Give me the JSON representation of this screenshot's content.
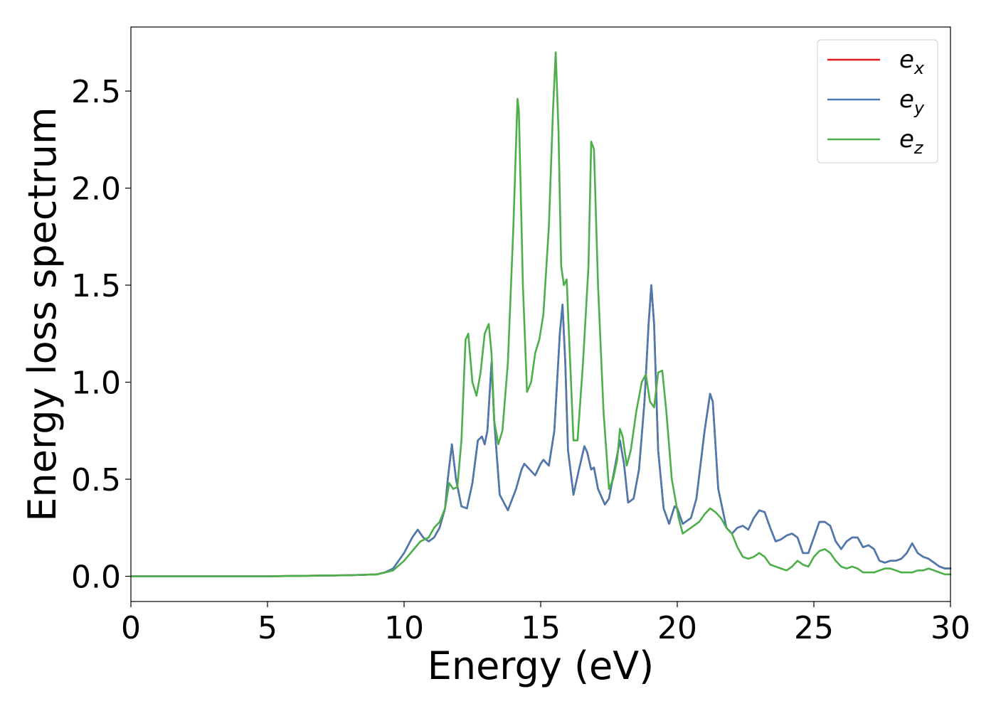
{
  "chart_data": {
    "type": "line",
    "xlabel": "Energy (eV)",
    "ylabel": "Energy loss spectrum",
    "xlim": [
      0,
      30
    ],
    "ylim": [
      -0.13,
      2.83
    ],
    "xticks": [
      "0",
      "5",
      "10",
      "15",
      "20",
      "25",
      "30"
    ],
    "yticks": [
      "0.0",
      "0.5",
      "1.0",
      "1.5",
      "2.0",
      "2.5"
    ],
    "grid": false,
    "legend_position": "top-right",
    "series": [
      {
        "name": "e_x",
        "label_main": "e",
        "label_sub": "x",
        "color": "#e41a1c",
        "x": [
          0,
          5,
          8,
          9,
          9.3,
          9.6,
          10.0,
          10.3,
          10.5,
          10.7,
          10.9,
          11.1,
          11.3,
          11.5,
          11.6,
          11.75,
          11.9,
          12.1,
          12.3,
          12.5,
          12.7,
          12.85,
          12.95,
          13.05,
          13.2,
          13.3,
          13.5,
          13.8,
          14.1,
          14.3,
          14.4,
          14.6,
          14.8,
          15.0,
          15.1,
          15.3,
          15.5,
          15.7,
          15.8,
          15.9,
          16.0,
          16.2,
          16.4,
          16.6,
          16.7,
          16.85,
          16.95,
          17.1,
          17.35,
          17.5,
          17.7,
          17.9,
          18.05,
          18.2,
          18.4,
          18.6,
          18.8,
          18.95,
          19.05,
          19.15,
          19.3,
          19.5,
          19.7,
          19.9,
          20.0,
          20.2,
          20.5,
          20.7,
          21.0,
          21.2,
          21.3,
          21.5,
          21.8,
          22.0,
          22.2,
          22.4,
          22.6,
          22.8,
          23.0,
          23.2,
          23.4,
          23.6,
          23.8,
          24.0,
          24.2,
          24.4,
          24.6,
          24.8,
          25.0,
          25.2,
          25.4,
          25.6,
          25.8,
          26.0,
          26.2,
          26.4,
          26.6,
          26.8,
          27.0,
          27.2,
          27.4,
          27.6,
          27.8,
          28.0,
          28.2,
          28.4,
          28.6,
          28.8,
          29.0,
          29.2,
          29.4,
          29.6,
          29.8,
          30.0
        ],
        "values": [
          0.0,
          0.0,
          0.005,
          0.01,
          0.02,
          0.04,
          0.12,
          0.2,
          0.24,
          0.2,
          0.18,
          0.2,
          0.25,
          0.35,
          0.5,
          0.68,
          0.5,
          0.36,
          0.35,
          0.48,
          0.7,
          0.72,
          0.68,
          0.75,
          1.1,
          0.8,
          0.42,
          0.34,
          0.45,
          0.55,
          0.58,
          0.55,
          0.52,
          0.58,
          0.6,
          0.57,
          0.75,
          1.25,
          1.4,
          1.1,
          0.65,
          0.42,
          0.55,
          0.67,
          0.64,
          0.55,
          0.56,
          0.45,
          0.37,
          0.4,
          0.55,
          0.7,
          0.58,
          0.38,
          0.4,
          0.55,
          0.9,
          1.3,
          1.5,
          1.3,
          0.65,
          0.35,
          0.27,
          0.36,
          0.35,
          0.27,
          0.3,
          0.4,
          0.75,
          0.94,
          0.9,
          0.45,
          0.25,
          0.22,
          0.25,
          0.26,
          0.24,
          0.3,
          0.34,
          0.33,
          0.25,
          0.18,
          0.19,
          0.21,
          0.22,
          0.2,
          0.12,
          0.12,
          0.2,
          0.28,
          0.28,
          0.26,
          0.18,
          0.14,
          0.18,
          0.2,
          0.2,
          0.15,
          0.16,
          0.14,
          0.08,
          0.07,
          0.08,
          0.08,
          0.09,
          0.12,
          0.17,
          0.12,
          0.1,
          0.09,
          0.07,
          0.05,
          0.04,
          0.04
        ]
      },
      {
        "name": "e_y",
        "label_main": "e",
        "label_sub": "y",
        "color": "#4a7bb0",
        "x": [
          0,
          5,
          8,
          9,
          9.3,
          9.6,
          10.0,
          10.3,
          10.5,
          10.7,
          10.9,
          11.1,
          11.3,
          11.5,
          11.6,
          11.75,
          11.9,
          12.1,
          12.3,
          12.5,
          12.7,
          12.85,
          12.95,
          13.05,
          13.2,
          13.3,
          13.5,
          13.8,
          14.1,
          14.3,
          14.4,
          14.6,
          14.8,
          15.0,
          15.1,
          15.3,
          15.5,
          15.7,
          15.8,
          15.9,
          16.0,
          16.2,
          16.4,
          16.6,
          16.7,
          16.85,
          16.95,
          17.1,
          17.35,
          17.5,
          17.7,
          17.9,
          18.05,
          18.2,
          18.4,
          18.6,
          18.8,
          18.95,
          19.05,
          19.15,
          19.3,
          19.5,
          19.7,
          19.9,
          20.0,
          20.2,
          20.5,
          20.7,
          21.0,
          21.2,
          21.3,
          21.5,
          21.8,
          22.0,
          22.2,
          22.4,
          22.6,
          22.8,
          23.0,
          23.2,
          23.4,
          23.6,
          23.8,
          24.0,
          24.2,
          24.4,
          24.6,
          24.8,
          25.0,
          25.2,
          25.4,
          25.6,
          25.8,
          26.0,
          26.2,
          26.4,
          26.6,
          26.8,
          27.0,
          27.2,
          27.4,
          27.6,
          27.8,
          28.0,
          28.2,
          28.4,
          28.6,
          28.8,
          29.0,
          29.2,
          29.4,
          29.6,
          29.8,
          30.0
        ],
        "values": [
          0.0,
          0.0,
          0.005,
          0.01,
          0.02,
          0.04,
          0.12,
          0.2,
          0.24,
          0.2,
          0.18,
          0.2,
          0.25,
          0.35,
          0.5,
          0.68,
          0.5,
          0.36,
          0.35,
          0.48,
          0.7,
          0.72,
          0.68,
          0.75,
          1.1,
          0.8,
          0.42,
          0.34,
          0.45,
          0.55,
          0.58,
          0.55,
          0.52,
          0.58,
          0.6,
          0.57,
          0.75,
          1.25,
          1.4,
          1.1,
          0.65,
          0.42,
          0.55,
          0.67,
          0.64,
          0.55,
          0.56,
          0.45,
          0.37,
          0.4,
          0.55,
          0.7,
          0.58,
          0.38,
          0.4,
          0.55,
          0.9,
          1.3,
          1.5,
          1.3,
          0.65,
          0.35,
          0.27,
          0.36,
          0.35,
          0.27,
          0.3,
          0.4,
          0.75,
          0.94,
          0.9,
          0.45,
          0.25,
          0.22,
          0.25,
          0.26,
          0.24,
          0.3,
          0.34,
          0.33,
          0.25,
          0.18,
          0.19,
          0.21,
          0.22,
          0.2,
          0.12,
          0.12,
          0.2,
          0.28,
          0.28,
          0.26,
          0.18,
          0.14,
          0.18,
          0.2,
          0.2,
          0.15,
          0.16,
          0.14,
          0.08,
          0.07,
          0.08,
          0.08,
          0.09,
          0.12,
          0.17,
          0.12,
          0.1,
          0.09,
          0.07,
          0.05,
          0.04,
          0.04
        ]
      },
      {
        "name": "e_z",
        "label_main": "e",
        "label_sub": "z",
        "color": "#4daf4a",
        "x": [
          0,
          5,
          8,
          9,
          9.3,
          9.6,
          10.0,
          10.3,
          10.6,
          10.9,
          11.1,
          11.3,
          11.5,
          11.65,
          11.8,
          11.95,
          12.1,
          12.25,
          12.35,
          12.5,
          12.65,
          12.8,
          12.95,
          13.1,
          13.2,
          13.3,
          13.45,
          13.6,
          13.8,
          14.0,
          14.15,
          14.2,
          14.35,
          14.5,
          14.65,
          14.8,
          14.95,
          15.1,
          15.3,
          15.45,
          15.55,
          15.65,
          15.75,
          15.85,
          15.95,
          16.05,
          16.2,
          16.35,
          16.55,
          16.75,
          16.85,
          16.95,
          17.1,
          17.3,
          17.5,
          17.65,
          17.8,
          17.9,
          18.0,
          18.15,
          18.3,
          18.5,
          18.7,
          18.85,
          19.0,
          19.15,
          19.3,
          19.45,
          19.6,
          19.8,
          19.95,
          20.05,
          20.2,
          20.5,
          20.8,
          21.0,
          21.2,
          21.4,
          21.6,
          21.8,
          22.0,
          22.2,
          22.4,
          22.6,
          22.8,
          23.0,
          23.2,
          23.4,
          23.6,
          23.8,
          24.0,
          24.2,
          24.4,
          24.6,
          24.8,
          25.0,
          25.2,
          25.4,
          25.6,
          25.8,
          26.0,
          26.2,
          26.4,
          26.6,
          26.8,
          27.0,
          27.2,
          27.4,
          27.6,
          27.8,
          28.0,
          28.2,
          28.4,
          28.6,
          28.8,
          29.0,
          29.2,
          29.4,
          29.6,
          29.8,
          30.0
        ],
        "values": [
          0.0,
          0.0,
          0.005,
          0.01,
          0.02,
          0.03,
          0.08,
          0.13,
          0.18,
          0.2,
          0.25,
          0.28,
          0.35,
          0.48,
          0.45,
          0.46,
          0.7,
          1.22,
          1.25,
          1.0,
          0.93,
          1.05,
          1.25,
          1.3,
          1.15,
          0.8,
          0.68,
          0.75,
          1.1,
          1.8,
          2.46,
          2.4,
          1.5,
          0.95,
          1.0,
          1.15,
          1.22,
          1.35,
          1.8,
          2.4,
          2.7,
          2.3,
          1.6,
          1.5,
          1.53,
          1.2,
          0.7,
          0.7,
          1.1,
          1.6,
          2.24,
          2.2,
          1.5,
          0.85,
          0.45,
          0.5,
          0.6,
          0.76,
          0.72,
          0.57,
          0.65,
          0.85,
          1.0,
          1.04,
          0.9,
          0.87,
          1.05,
          1.06,
          0.85,
          0.5,
          0.38,
          0.3,
          0.22,
          0.25,
          0.28,
          0.32,
          0.35,
          0.33,
          0.3,
          0.25,
          0.22,
          0.15,
          0.1,
          0.09,
          0.1,
          0.12,
          0.1,
          0.06,
          0.05,
          0.04,
          0.03,
          0.05,
          0.08,
          0.06,
          0.05,
          0.1,
          0.13,
          0.14,
          0.12,
          0.08,
          0.05,
          0.04,
          0.05,
          0.04,
          0.02,
          0.02,
          0.02,
          0.03,
          0.04,
          0.04,
          0.03,
          0.02,
          0.02,
          0.02,
          0.03,
          0.03,
          0.04,
          0.03,
          0.02,
          0.01,
          0.01
        ]
      }
    ]
  }
}
